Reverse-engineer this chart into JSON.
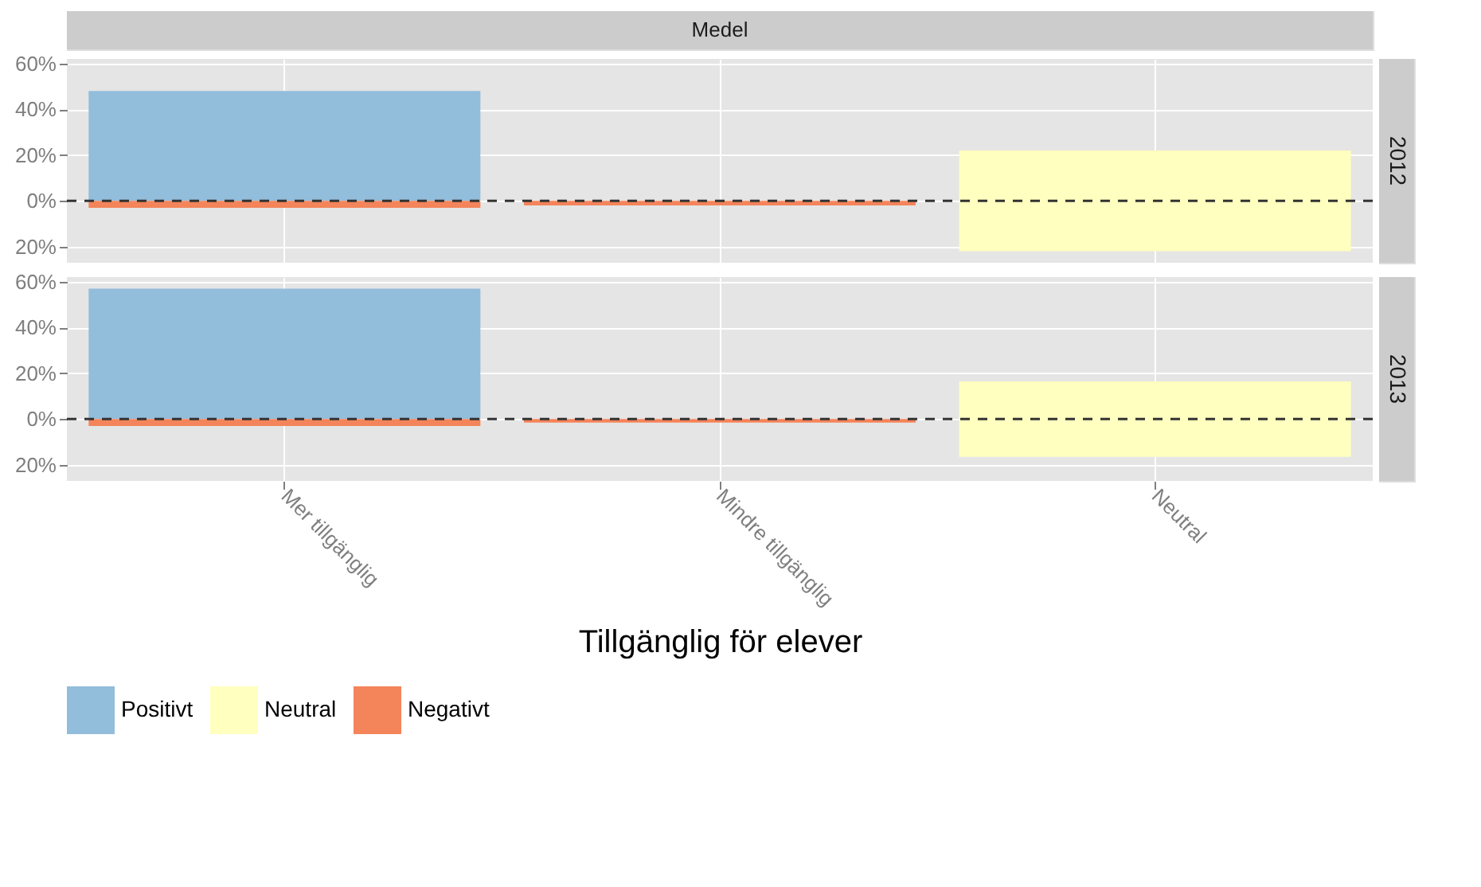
{
  "chart_data": [
    {
      "type": "bar",
      "title": "Medel",
      "annotations": [
        "2012"
      ],
      "categories": [
        "Mer tillgänglig",
        "Mindre tillgänglig",
        "Neutral"
      ],
      "series": [
        {
          "name": "Positivt",
          "color": "#92bddb",
          "values": [
            48,
            null,
            null
          ],
          "base": [
            0,
            null,
            null
          ]
        },
        {
          "name": "Neutral",
          "color": "#ffffbf",
          "values": [
            null,
            null,
            44
          ],
          "base": [
            null,
            null,
            -22
          ]
        },
        {
          "name": "Negativt",
          "color": "#f4845a",
          "values": [
            -3,
            -2,
            null
          ],
          "base": [
            0,
            0,
            null
          ]
        }
      ],
      "ylim": [
        -27,
        62
      ],
      "yticks": [
        {
          "value": 60,
          "label": "60%"
        },
        {
          "value": 40,
          "label": "40%"
        },
        {
          "value": 20,
          "label": "20%"
        },
        {
          "value": 0,
          "label": "0%"
        },
        {
          "value": -20,
          "label": "20%"
        }
      ],
      "ref_lines": [
        {
          "axis": "y",
          "value": 0,
          "label": null,
          "color": "#333333",
          "line_style": "dashed"
        }
      ],
      "grid": true,
      "tick_labels": "y",
      "legend": "bottom"
    },
    {
      "type": "bar",
      "annotations": [
        "2013"
      ],
      "xlabel": "Tillgänglig för elever",
      "categories": [
        "Mer tillgänglig",
        "Mindre tillgänglig",
        "Neutral"
      ],
      "series": [
        {
          "name": "Positivt",
          "color": "#92bddb",
          "values": [
            57,
            null,
            null
          ],
          "base": [
            0,
            null,
            null
          ]
        },
        {
          "name": "Neutral",
          "color": "#ffffbf",
          "values": [
            null,
            null,
            33
          ],
          "base": [
            null,
            null,
            -16.5
          ]
        },
        {
          "name": "Negativt",
          "color": "#f4845a",
          "values": [
            -3,
            -1.5,
            null
          ],
          "base": [
            0,
            0,
            null
          ]
        }
      ],
      "ylim": [
        -27,
        62
      ],
      "yticks": [
        {
          "value": 60,
          "label": "60%"
        },
        {
          "value": 40,
          "label": "40%"
        },
        {
          "value": 20,
          "label": "20%"
        },
        {
          "value": 0,
          "label": "0%"
        },
        {
          "value": -20,
          "label": "20%"
        }
      ],
      "ref_lines": [
        {
          "axis": "y",
          "value": 0,
          "label": null,
          "color": "#333333",
          "line_style": "dashed"
        }
      ],
      "grid": true,
      "legend": "bottom"
    }
  ]
}
